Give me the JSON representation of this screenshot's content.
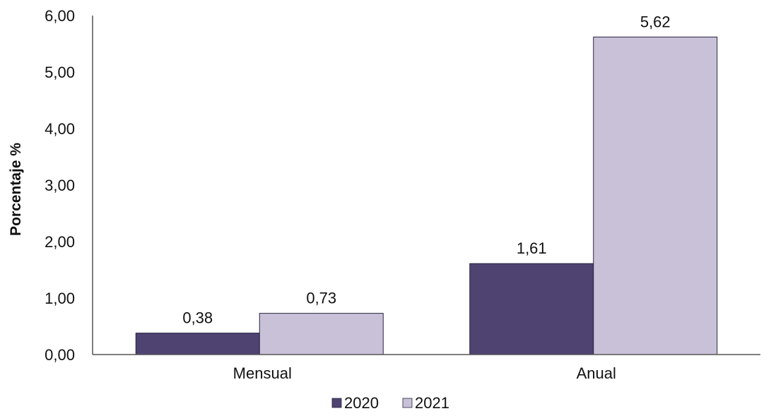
{
  "chart_data": {
    "type": "bar",
    "categories": [
      "Mensual",
      "Anual"
    ],
    "series": [
      {
        "name": "2020",
        "values": [
          0.38,
          1.61
        ],
        "labels": [
          "0,38",
          "1,61"
        ],
        "color": "#4e4371"
      },
      {
        "name": "2021",
        "values": [
          0.73,
          5.62
        ],
        "labels": [
          "0,73",
          "5,62"
        ],
        "color": "#c9c1d8"
      }
    ],
    "ylabel": "Porcentaje %",
    "xlabel": "",
    "ylim": [
      0,
      6
    ],
    "yticks": [
      {
        "value": 0,
        "label": "0,00"
      },
      {
        "value": 1,
        "label": "1,00"
      },
      {
        "value": 2,
        "label": "2,00"
      },
      {
        "value": 3,
        "label": "3,00"
      },
      {
        "value": 4,
        "label": "4,00"
      },
      {
        "value": 5,
        "label": "5,00"
      },
      {
        "value": 6,
        "label": "6,00"
      }
    ],
    "grid": false,
    "legend": "bottom-center"
  }
}
